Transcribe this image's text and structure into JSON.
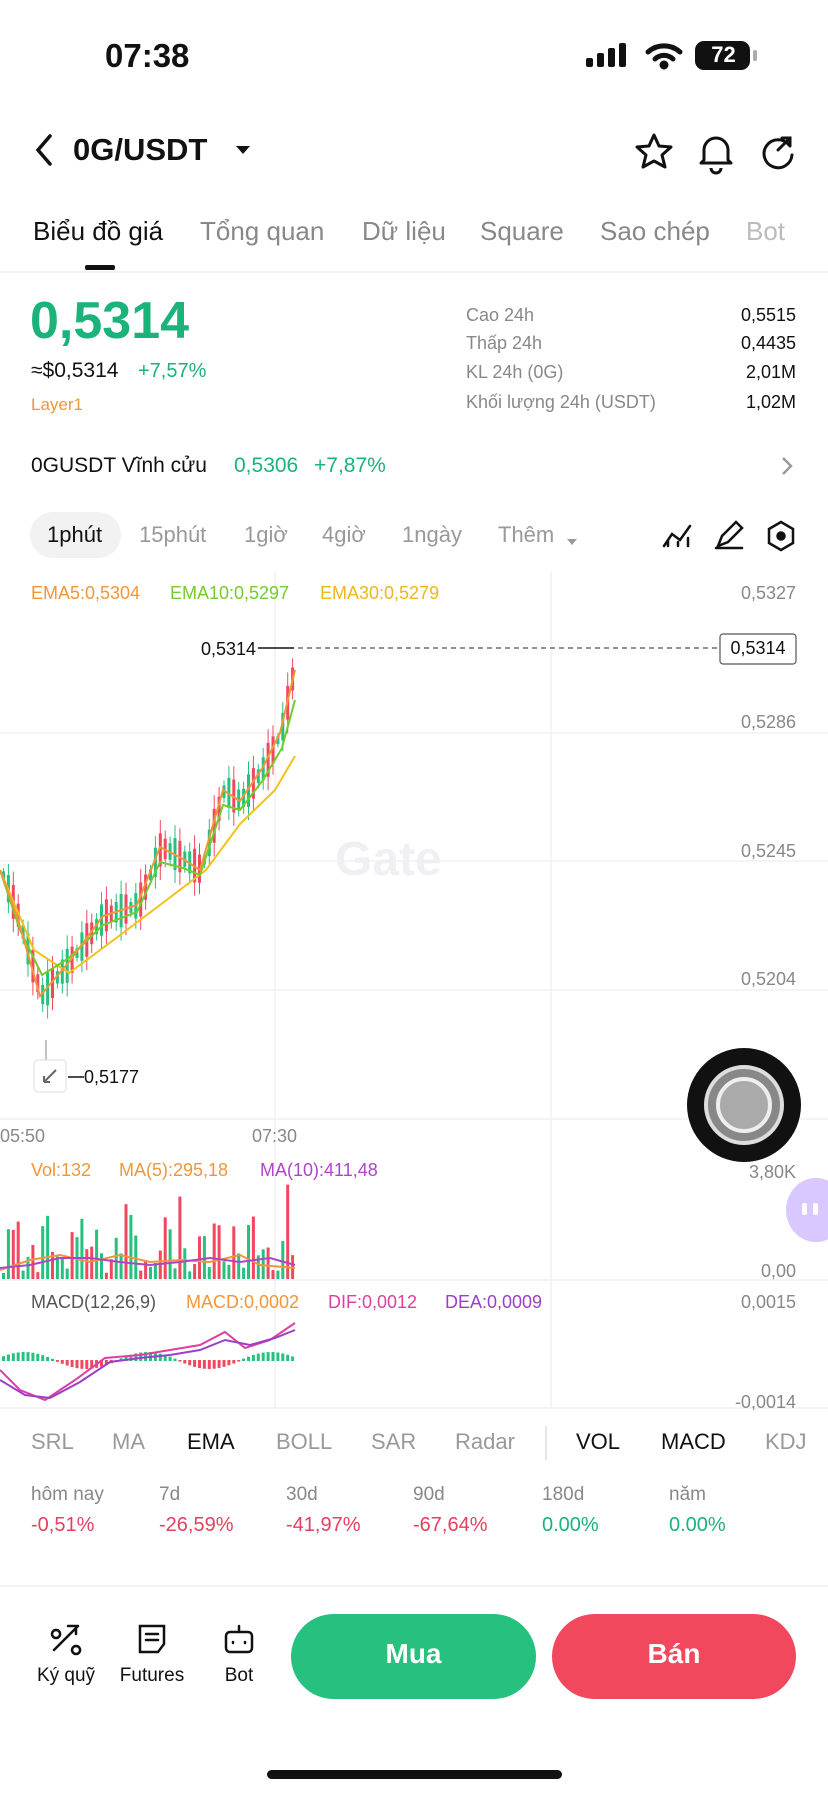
{
  "status": {
    "time": "07:38",
    "battery": "72"
  },
  "header": {
    "pair": "0G/USDT"
  },
  "tabs": [
    "Biểu đồ giá",
    "Tổng quan",
    "Dữ liệu",
    "Square",
    "Sao chép",
    "Bot"
  ],
  "price": {
    "last": "0,5314",
    "approx": "≈$0,5314",
    "change": "+7,57%",
    "tag": "Layer1"
  },
  "stats": [
    {
      "label": "Cao 24h",
      "value": "0,5515"
    },
    {
      "label": "Thấp 24h",
      "value": "0,4435"
    },
    {
      "label": "KL 24h (0G)",
      "value": "2,01M"
    },
    {
      "label": "Khối lượng 24h (USDT)",
      "value": "1,02M"
    }
  ],
  "perpetual": {
    "name": "0GUSDT Vĩnh cửu",
    "price": "0,5306",
    "change": "+7,87%"
  },
  "intervals": [
    "1phút",
    "15phút",
    "1giờ",
    "4giờ",
    "1ngày",
    "Thêm"
  ],
  "chart": {
    "ema_legend": [
      "EMA5:0,5304",
      "EMA10:0,5297",
      "EMA30:0,5279"
    ],
    "price_axis": [
      "0,5327",
      "0,5286",
      "0,5245",
      "0,5204"
    ],
    "current_price": "0,5314",
    "high_label": "0,5314",
    "low_label": "0,5177",
    "time_axis": [
      "05:50",
      "07:30"
    ],
    "watermark": "Gate"
  },
  "volume": {
    "legend": [
      "Vol:132",
      "MA(5):295,18",
      "MA(10):411,48"
    ],
    "axis": [
      "3,80K",
      "0,00"
    ]
  },
  "macd": {
    "legend": [
      "MACD(12,26,9)",
      "MACD:0,0002",
      "DIF:0,0012",
      "DEA:0,0009"
    ],
    "axis": [
      "0,0015",
      "-0,0014"
    ]
  },
  "indicators": [
    "SRL",
    "MA",
    "EMA",
    "BOLL",
    "SAR",
    "Radar",
    "VOL",
    "MACD",
    "KDJ"
  ],
  "performance": [
    {
      "period": "hôm nay",
      "value": "-0,51%"
    },
    {
      "period": "7d",
      "value": "-26,59%"
    },
    {
      "period": "30d",
      "value": "-41,97%"
    },
    {
      "period": "90d",
      "value": "-67,64%"
    },
    {
      "period": "180d",
      "value": "0.00%"
    },
    {
      "period": "năm",
      "value": "0.00%"
    }
  ],
  "bottom": {
    "tools": [
      "Ký quỹ",
      "Futures",
      "Bot"
    ],
    "buy": "Mua",
    "sell": "Bán"
  }
}
